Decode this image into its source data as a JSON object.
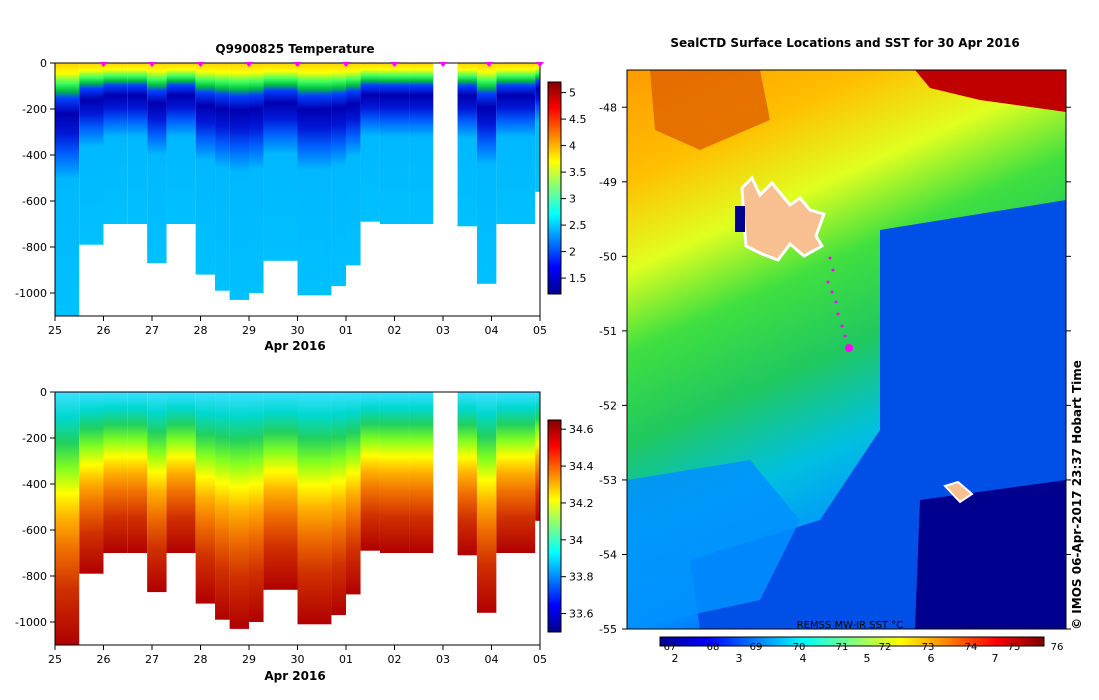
{
  "chart_data": [
    {
      "type": "heatmap",
      "title": "Q9900825  Temperature",
      "xlabel": "Apr 2016",
      "x_ticks": [
        "25",
        "26",
        "27",
        "28",
        "29",
        "30",
        "01",
        "02",
        "03",
        "04",
        "05"
      ],
      "y_ticks": [
        0,
        -200,
        -400,
        -600,
        -800,
        -1000
      ],
      "ylim": [
        -1100,
        0
      ],
      "colorbar_ticks": [
        "5",
        "4.5",
        "4",
        "3.5",
        "3",
        "2.5",
        "2",
        "1.5"
      ],
      "colorbar_range": [
        1.2,
        5.2
      ],
      "profiles": [
        {
          "t": 0.0,
          "depth": 1100
        },
        {
          "t": 0.5,
          "depth": 790
        },
        {
          "t": 1.0,
          "depth": 700
        },
        {
          "t": 1.5,
          "depth": 700
        },
        {
          "t": 1.9,
          "depth": 870
        },
        {
          "t": 2.3,
          "depth": 700
        },
        {
          "t": 2.9,
          "depth": 920
        },
        {
          "t": 3.3,
          "depth": 990
        },
        {
          "t": 3.6,
          "depth": 1030
        },
        {
          "t": 4.0,
          "depth": 1000
        },
        {
          "t": 4.3,
          "depth": 860
        },
        {
          "t": 5.0,
          "depth": 1010
        },
        {
          "t": 5.7,
          "depth": 970
        },
        {
          "t": 6.0,
          "depth": 880
        },
        {
          "t": 6.3,
          "depth": 690
        },
        {
          "t": 6.7,
          "depth": 700
        },
        {
          "t": 7.0,
          "depth": 700
        },
        {
          "t": 7.3,
          "depth": 700
        },
        {
          "t": 8.3,
          "depth": 710
        },
        {
          "t": 8.7,
          "depth": 960
        },
        {
          "t": 9.1,
          "depth": 700
        },
        {
          "t": 9.9,
          "depth": 560
        }
      ],
      "gap": [
        7.8,
        8.3
      ],
      "markers_t": [
        1,
        2,
        3,
        4,
        5,
        6,
        7,
        8,
        8.95,
        10
      ]
    },
    {
      "type": "heatmap",
      "title": "",
      "xlabel": "Apr 2016",
      "x_ticks": [
        "25",
        "26",
        "27",
        "28",
        "29",
        "30",
        "01",
        "02",
        "03",
        "04",
        "05"
      ],
      "y_ticks": [
        0,
        -200,
        -400,
        -600,
        -800,
        -1000
      ],
      "ylim": [
        -1100,
        0
      ],
      "colorbar_ticks": [
        "34.6",
        "34.4",
        "34.2",
        "34",
        "33.8",
        "33.6"
      ],
      "colorbar_range": [
        33.5,
        34.65
      ]
    },
    {
      "type": "heatmap",
      "title": "SealCTD Surface Locations and SST for 30 Apr 2016",
      "y_ticks": [
        "-48",
        "-49",
        "-50",
        "-51",
        "-52",
        "-53",
        "-54",
        "-55"
      ],
      "ylim": [
        -55,
        -47.5
      ],
      "colorbar_label": "REMSS MW-IR SST °C",
      "colorbar_ticks_bottom": [
        "2",
        "3",
        "4",
        "5",
        "6",
        "7"
      ],
      "colorbar_ticks_top": [
        "67",
        "68",
        "69",
        "70",
        "71",
        "72",
        "73",
        "74",
        "75",
        "76"
      ],
      "credit": "© IMOS 06-Apr-2017 23:37 Hobart Time"
    }
  ],
  "colors": {
    "jet": [
      "#00008f",
      "#0000ff",
      "#0080ff",
      "#00ffff",
      "#80ff80",
      "#ffff00",
      "#ff8000",
      "#ff0000",
      "#800000"
    ],
    "marker": "#ff00ff",
    "island": "#f8c090"
  }
}
